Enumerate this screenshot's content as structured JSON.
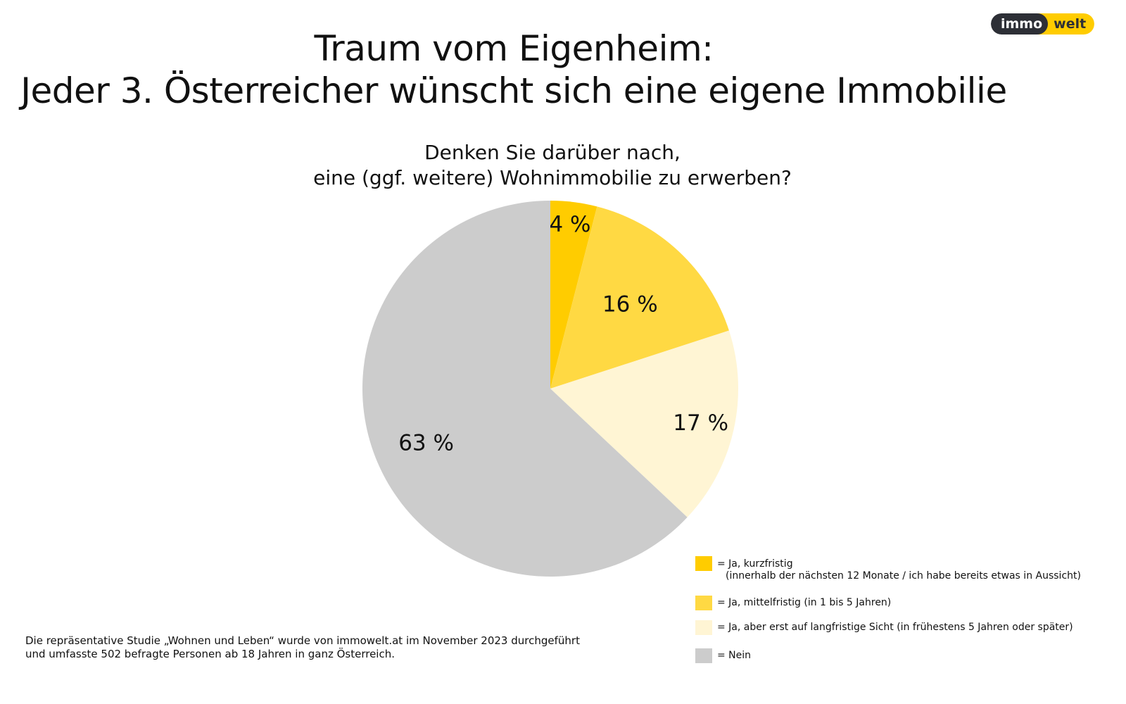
{
  "header": {
    "title_line1": "Traum vom Eigenheim:",
    "title_line2": "Jeder 3. Österreicher wünscht sich eine eigene Immobilie",
    "logo_left": "immo",
    "logo_right": "welt"
  },
  "chart_data": {
    "type": "pie",
    "title": "Denken Sie darüber nach, eine (ggf. weitere) Wohnimmobilie zu erwerben?",
    "subtitle_line1": "Denken Sie darüber nach,",
    "subtitle_line2": "eine (ggf. weitere) Wohnimmobilie zu erwerben?",
    "start": "12 o'clock, clockwise",
    "slices": [
      {
        "name": "Ja, kurzfristig",
        "value": 4,
        "label": "4 %",
        "color": "#ffcc00"
      },
      {
        "name": "Ja, mittelfristig",
        "value": 16,
        "label": "16 %",
        "color": "#ffd943"
      },
      {
        "name": "Ja, langfristig",
        "value": 17,
        "label": "17 %",
        "color": "#fff5d4"
      },
      {
        "name": "Nein",
        "value": 63,
        "label": "63 %",
        "color": "#cccccc"
      }
    ],
    "legend": [
      {
        "line1": "= Ja, kurzfristig",
        "line2": "(innerhalb der nächsten 12 Monate / ich habe bereits etwas in Aussicht)",
        "color": "#ffcc00"
      },
      {
        "line1": "= Ja, mittelfristig (in 1 bis 5 Jahren)",
        "color": "#ffd943"
      },
      {
        "line1": "= Ja, aber erst auf langfristige Sicht (in frühestens 5 Jahren oder später)",
        "color": "#fff5d4"
      },
      {
        "line1": "= Nein",
        "color": "#cccccc"
      }
    ],
    "legend_position": "bottom-right"
  },
  "footer": {
    "line1": "Die repräsentative Studie „Wohnen und Leben“ wurde von immowelt.at im November 2023 durchgeführt",
    "line2": "und umfasste 502 befragte Personen ab 18 Jahren in ganz Österreich."
  }
}
